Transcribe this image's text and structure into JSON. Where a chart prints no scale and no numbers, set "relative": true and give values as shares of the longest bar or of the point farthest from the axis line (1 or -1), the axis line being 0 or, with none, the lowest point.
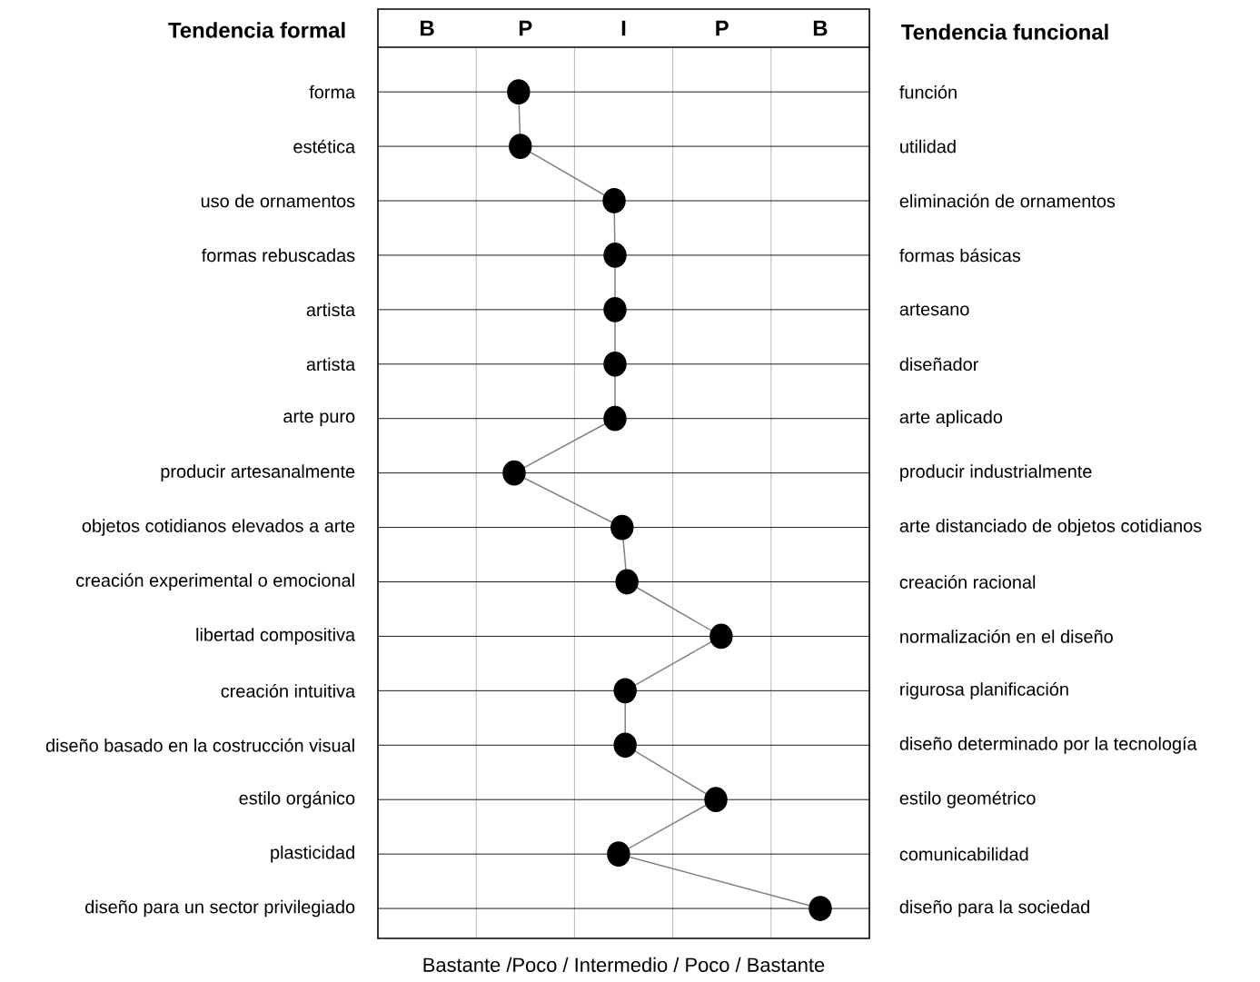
{
  "chart_data": {
    "type": "line",
    "orientation": "horizontal",
    "relative": true,
    "ylabel": "Tendencia formal",
    "y2label": "Tendencia funcional",
    "xlabel": "Bastante  /Poco / Intermedio / Poco / Bastante",
    "annotations": [
      "B",
      "P",
      "I",
      "P",
      "B"
    ],
    "categories": [
      "forma",
      "estética",
      "uso de ornamentos",
      "formas rebuscadas",
      "artista",
      "artista",
      "arte puro",
      "producir artesanalmente",
      "objetos cotidianos elevados a arte",
      "creación experimental o emocional",
      "libertad compositiva",
      "creación intuitiva",
      "diseño basado en la costrucción visual",
      "estilo orgánico",
      "plasticidad",
      "diseño para  un sector privilegiado"
    ],
    "y2_categories": [
      "función",
      "utilidad",
      "eliminación de ornamentos",
      "formas básicas",
      "artesano",
      "diseñador",
      "arte aplicado",
      "producir industrialmente",
      "arte distanciado de objetos cotidianos",
      "creación racional",
      "normalización en el diseño",
      "rigurosa planificación",
      "diseño determinado por la tecnología",
      "estilo geométrico",
      "comunicabilidad",
      "diseño para la sociedad"
    ],
    "grid": true,
    "marker": "circle",
    "series": [
      {
        "color": "#000000",
        "values": [
          0.318,
          0.322,
          0.534,
          0.536,
          0.536,
          0.536,
          0.536,
          0.308,
          0.552,
          0.563,
          0.776,
          0.559,
          0.559,
          0.764,
          0.544,
          1.0
        ]
      }
    ]
  }
}
